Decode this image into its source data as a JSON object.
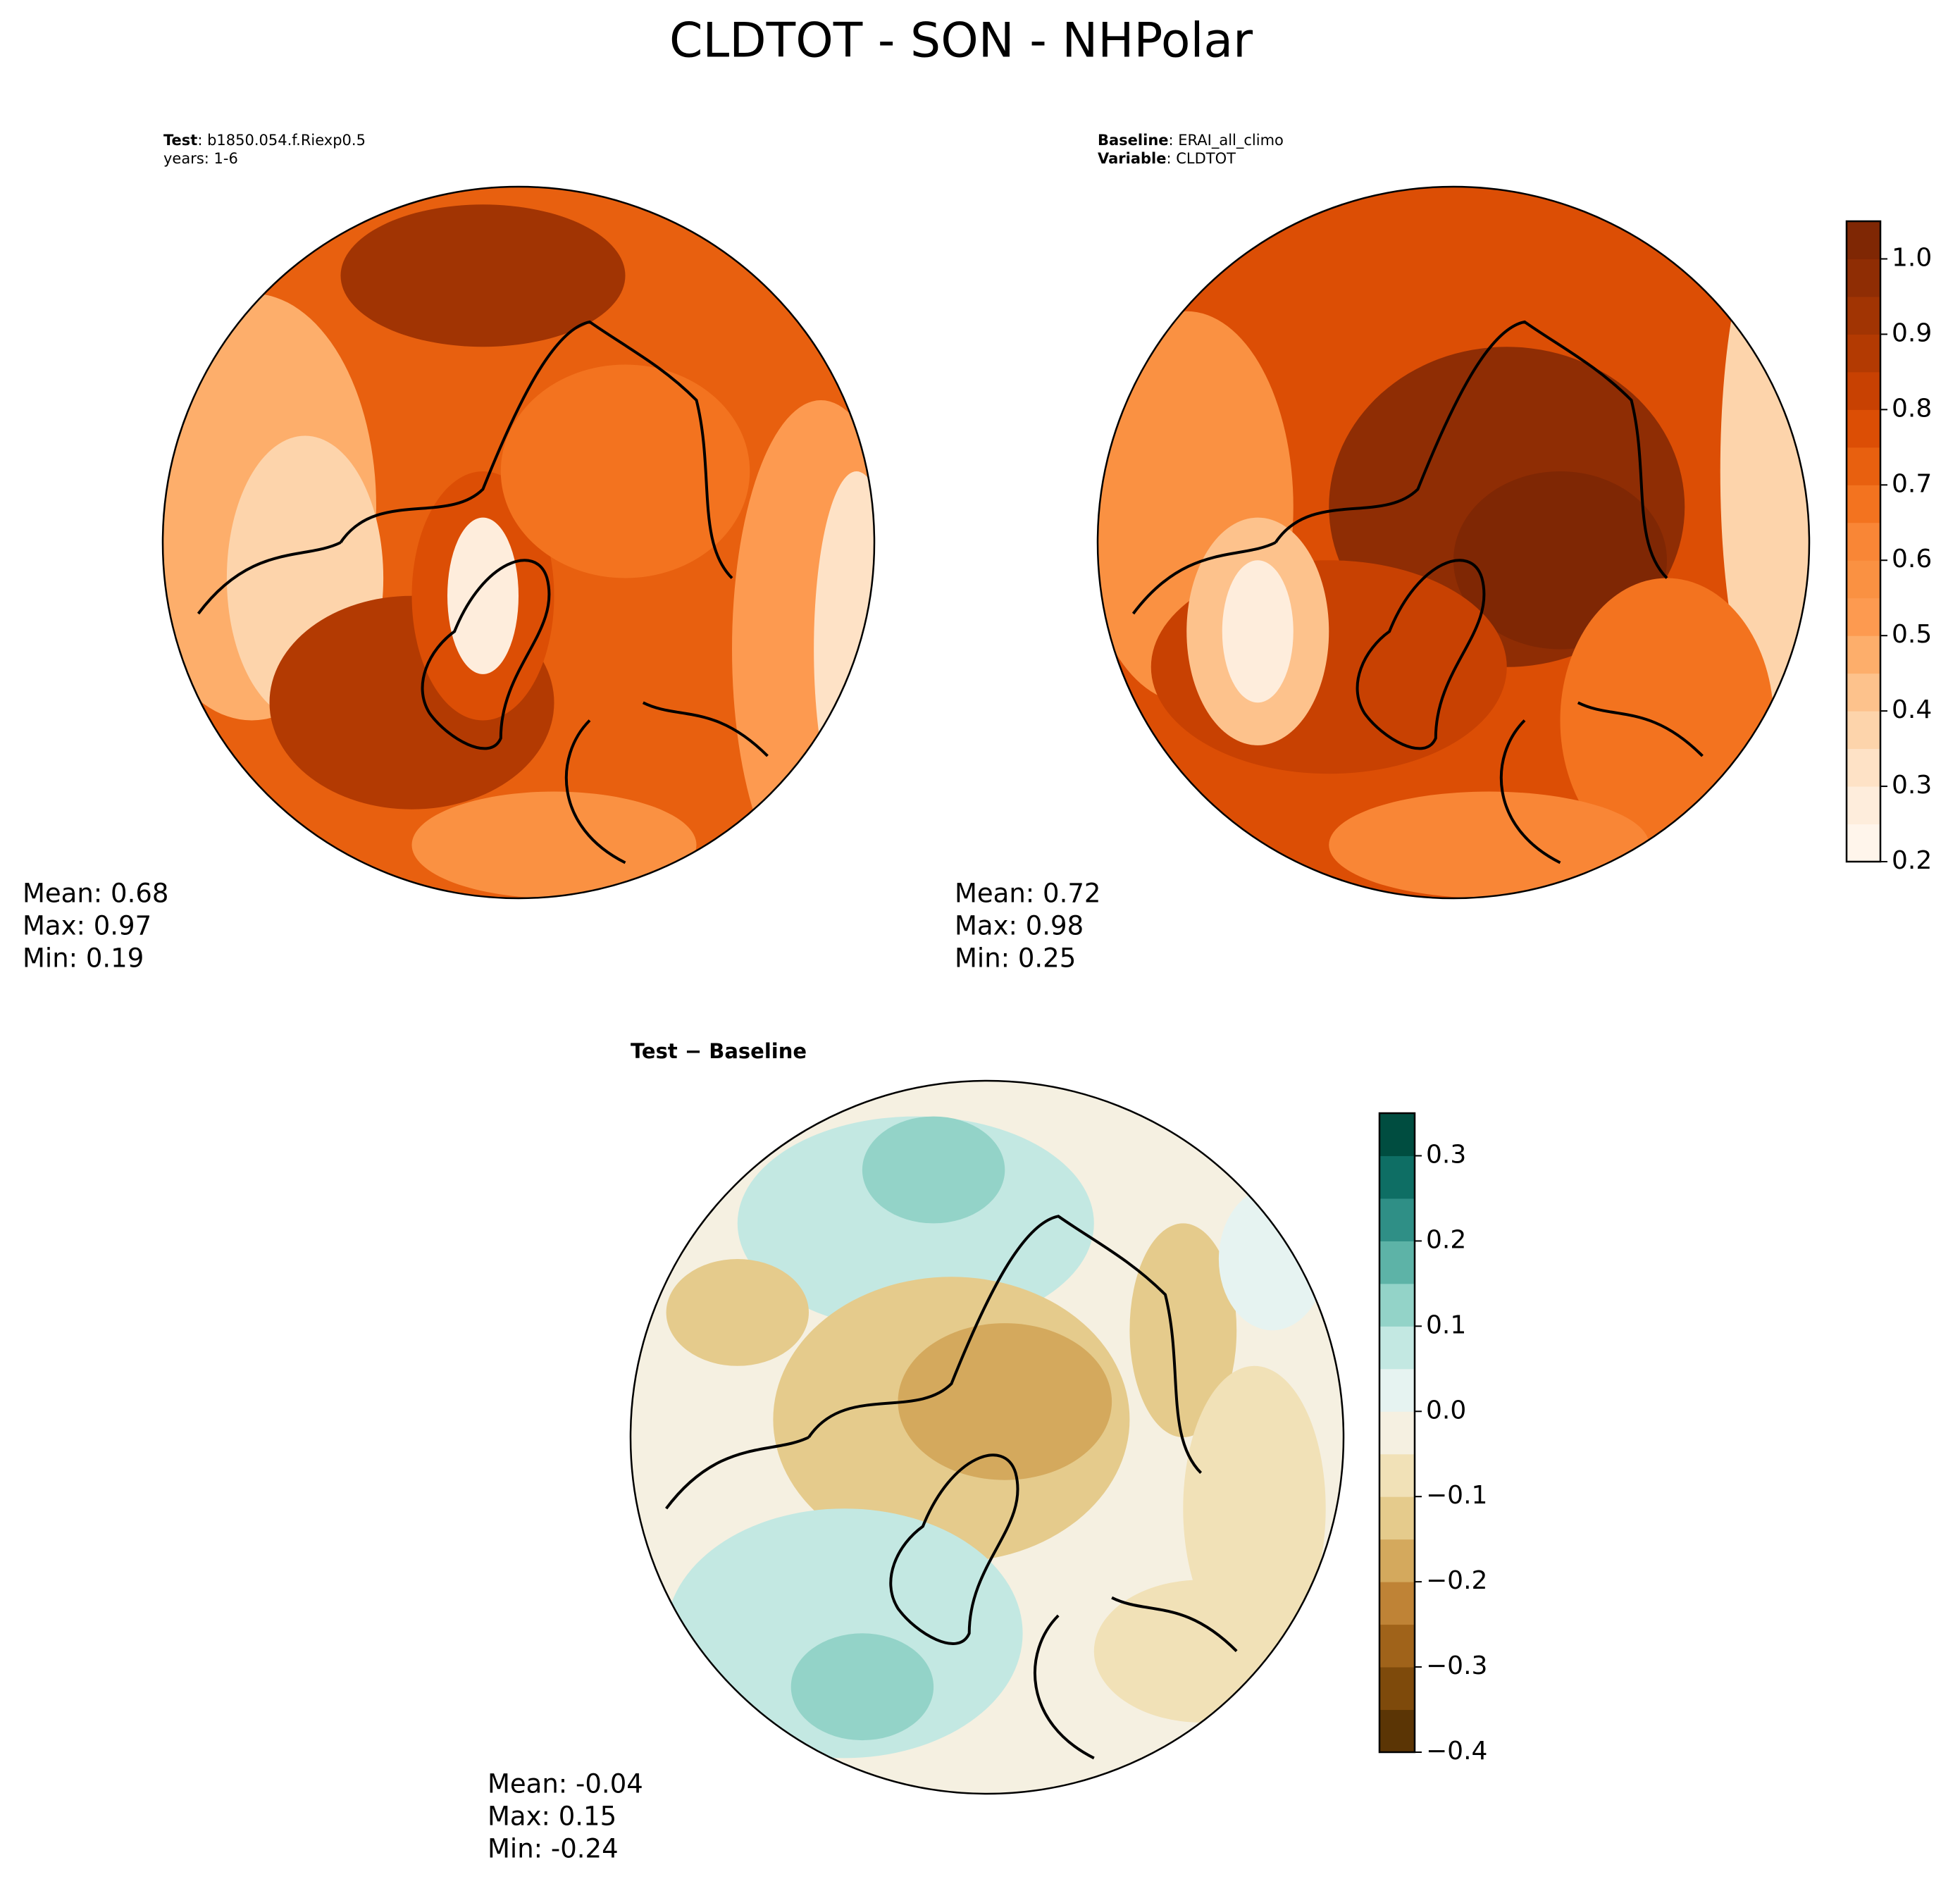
{
  "title": "CLDTOT - SON - NHPolar",
  "panels": [
    {
      "label_lines": [
        {
          "bold": "Test",
          "text": ": b1850.054.f.Riexp0.5"
        },
        {
          "text": "years: 1-6"
        }
      ],
      "stats": [
        "Mean:  0.68",
        "Max:  0.97",
        "Min:  0.19"
      ]
    },
    {
      "label_lines": [
        {
          "bold": "Baseline",
          "text": ": ERAI_all_climo"
        },
        {
          "bold": "Variable",
          "text": ": CLDTOT"
        }
      ],
      "stats": [
        "Mean:  0.72",
        "Max:  0.98",
        "Min:  0.25"
      ]
    },
    {
      "label_lines": [
        {
          "bold": "Test − Baseline"
        }
      ],
      "stats": [
        "Mean: -0.04",
        "Max:  0.15",
        "Min: -0.24"
      ]
    }
  ],
  "colorbars": [
    {
      "range": [
        0.2,
        1.05
      ],
      "ticks": [
        0.2,
        0.3,
        0.4,
        0.5,
        0.6,
        0.7,
        0.8,
        0.9,
        {
          "value": 1,
          "label": "1.0"
        }
      ],
      "colors": [
        "#fff5eb",
        "#feeddc",
        "#fee2c6",
        "#fdd4ab",
        "#fdc28c",
        "#fdae6b",
        "#fd9a50",
        "#fa9142",
        "#f98636",
        "#f3731f",
        "#e8600f",
        "#dc4e05",
        "#c84102",
        "#b33a02",
        "#a13403",
        "#8f2d04",
        "#7f2704"
      ]
    },
    {
      "range": [
        -0.4,
        0.35
      ],
      "ticks": [
        {
          "value": -0.4,
          "label": "−0.4"
        },
        {
          "value": -0.3,
          "label": "−0.3"
        },
        {
          "value": -0.2,
          "label": "−0.2"
        },
        {
          "value": -0.1,
          "label": "−0.1"
        },
        {
          "value": 0,
          "label": "0.0"
        },
        0.1,
        0.2,
        0.3
      ],
      "colors": [
        "#5b3505",
        "#7e4a0b",
        "#a0631a",
        "#bf8336",
        "#d4a95d",
        "#e5cb8c",
        "#f1e1b7",
        "#f5f0e1",
        "#e6f3f1",
        "#c3e8e2",
        "#93d3c8",
        "#5db3a7",
        "#2f8f86",
        "#0e6e64",
        "#004d40"
      ]
    }
  ]
}
